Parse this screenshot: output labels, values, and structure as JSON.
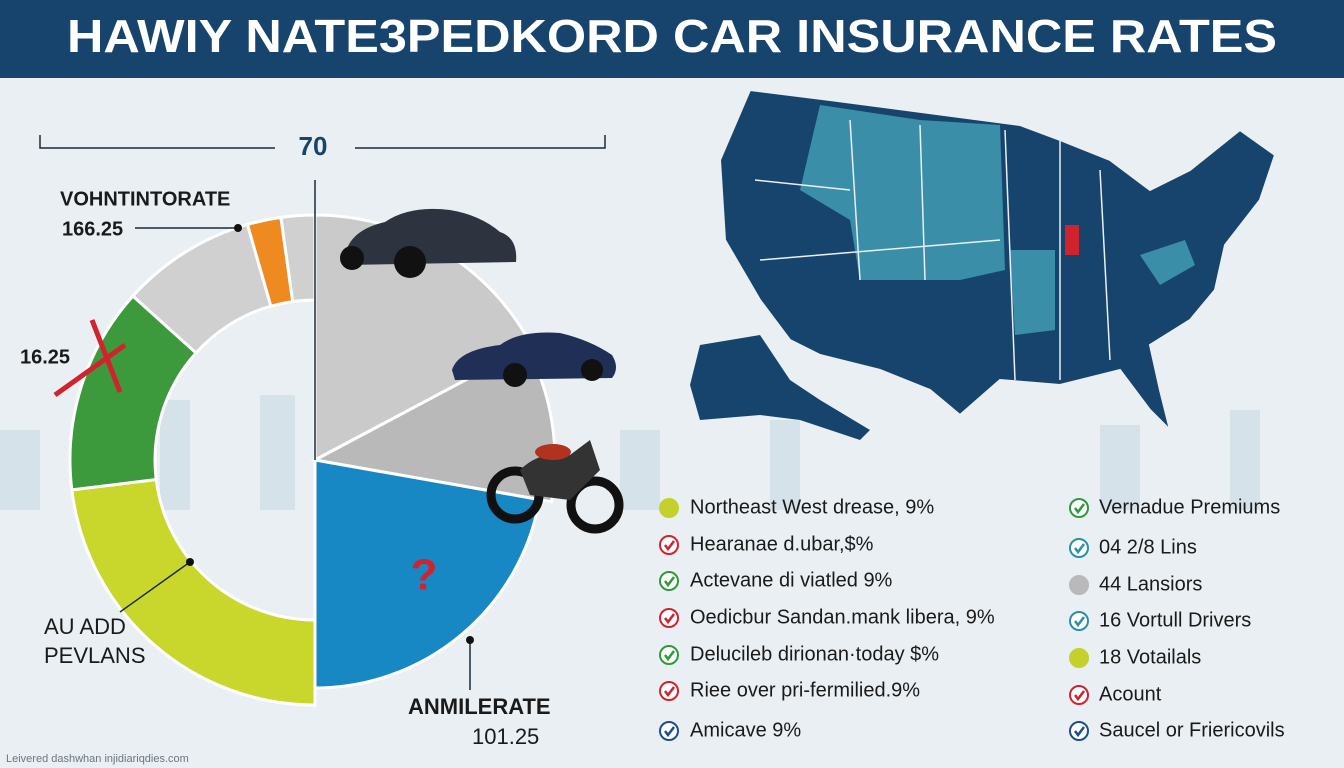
{
  "header": {
    "title": "HAWIY NATE3PEDKORD CAR INSURANCE RATES"
  },
  "donut": {
    "top_label": "70",
    "labels": [
      {
        "name": "VOHNTINTORATE",
        "value": "166.25"
      },
      {
        "value": "16.25"
      },
      {
        "name": "AU ADD",
        "name2": "PEVLANS"
      },
      {
        "name": "ANMILERATE",
        "value": "101.25"
      }
    ],
    "mark": "?"
  },
  "legend_left": [
    {
      "text": "Northeast West drease, 9%",
      "color": "#c5d12a",
      "icon": "dot"
    },
    {
      "text": "Hearanae d.ubar,$%",
      "color": "#d0232e",
      "icon": "check"
    },
    {
      "text": "Actevane di viatled 9%",
      "color": "#2e9a3a",
      "icon": "check"
    },
    {
      "text": "Oedicbur Sandan.mank libera, 9%",
      "color": "#d0232e",
      "icon": "check"
    },
    {
      "text": "Delucileb dirionan·today $%",
      "color": "#2e9a3a",
      "icon": "check"
    },
    {
      "text": "Riee over pri-fermilied.9%",
      "color": "#d0232e",
      "icon": "check"
    },
    {
      "text": "Amicave 9%",
      "color": "#1d4f86",
      "icon": "check"
    }
  ],
  "legend_right": [
    {
      "text": "Vernadue Premiums",
      "color": "#2e9a3a",
      "icon": "check"
    },
    {
      "text": "04 2/8 Lins",
      "color": "#2a8fa8",
      "icon": "check"
    },
    {
      "text": "44 Lansiors",
      "color": "#b9b9b9",
      "icon": "dot"
    },
    {
      "text": "16 Vortull Drivers",
      "color": "#2a8fa8",
      "icon": "check"
    },
    {
      "text": "18 Votailals",
      "color": "#c5d12a",
      "icon": "dot"
    },
    {
      "text": "Acount",
      "color": "#d0232e",
      "icon": "check"
    },
    {
      "text": "Saucel or Friericovils",
      "color": "#1d4f86",
      "icon": "check"
    }
  ],
  "footer": "Leivered dashwhan injidiariqdies.com"
}
